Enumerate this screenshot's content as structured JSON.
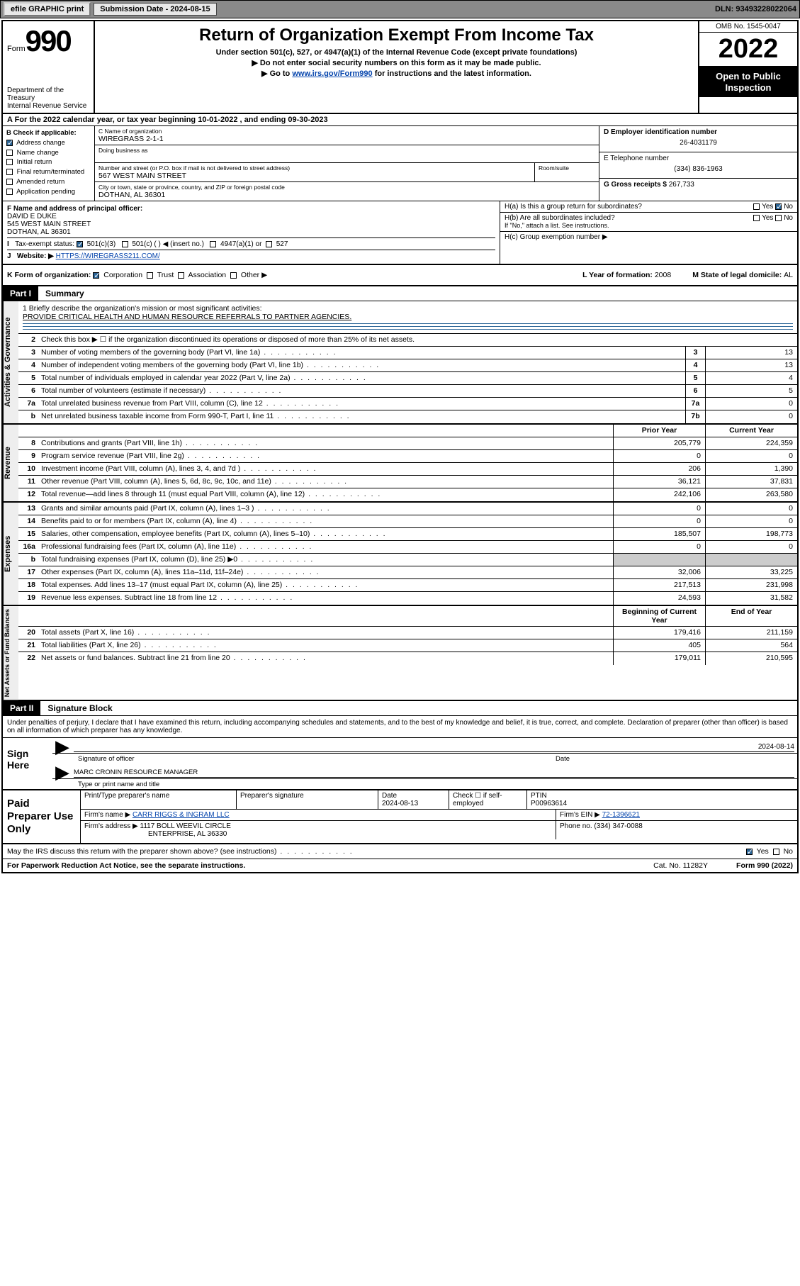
{
  "topbar": {
    "efile": "efile GRAPHIC print",
    "sub_label": "Submission Date - 2024-08-15",
    "dln": "DLN: 93493228022064"
  },
  "header": {
    "form_word": "Form",
    "form_num": "990",
    "dept": "Department of the Treasury\nInternal Revenue Service",
    "title": "Return of Organization Exempt From Income Tax",
    "sub1": "Under section 501(c), 527, or 4947(a)(1) of the Internal Revenue Code (except private foundations)",
    "sub2": "Do not enter social security numbers on this form as it may be made public.",
    "sub3_pre": "Go to ",
    "sub3_link": "www.irs.gov/Form990",
    "sub3_post": " for instructions and the latest information.",
    "omb": "OMB No. 1545-0047",
    "year": "2022",
    "public": "Open to Public Inspection"
  },
  "period": {
    "label_a": "A For the 2022 calendar year, or tax year beginning ",
    "begin": "10-01-2022",
    "mid": " , and ending ",
    "end": "09-30-2023"
  },
  "sectionB": {
    "label": "B Check if applicable:",
    "items": [
      {
        "txt": "Address change",
        "on": true
      },
      {
        "txt": "Name change",
        "on": false
      },
      {
        "txt": "Initial return",
        "on": false
      },
      {
        "txt": "Final return/terminated",
        "on": false
      },
      {
        "txt": "Amended return",
        "on": false
      },
      {
        "txt": "Application pending",
        "on": false
      }
    ]
  },
  "sectionC": {
    "name_lbl": "C Name of organization",
    "name": "WIREGRASS 2-1-1",
    "dba_lbl": "Doing business as",
    "addr_lbl": "Number and street (or P.O. box if mail is not delivered to street address)",
    "room_lbl": "Room/suite",
    "addr": "567 WEST MAIN STREET",
    "city_lbl": "City or town, state or province, country, and ZIP or foreign postal code",
    "city": "DOTHAN, AL  36301"
  },
  "sectionD": {
    "lbl": "D Employer identification number",
    "val": "26-4031179"
  },
  "sectionE": {
    "lbl": "E Telephone number",
    "val": "(334) 836-1963"
  },
  "sectionG": {
    "lbl": "G Gross receipts $ ",
    "val": "267,733"
  },
  "sectionF": {
    "lbl": "F Name and address of principal officer:",
    "name": "DAVID E DUKE",
    "addr1": "545 WEST MAIN STREET",
    "addr2": "DOTHAN, AL  36301"
  },
  "sectionH": {
    "ha": "H(a)  Is this a group return for subordinates?",
    "ha_yes": "Yes",
    "ha_no": "No",
    "hb": "H(b)  Are all subordinates included?",
    "hb_note": "If \"No,\" attach a list. See instructions.",
    "hc": "H(c)  Group exemption number ▶"
  },
  "taxExempt": {
    "lbl": "Tax-exempt status:",
    "opts": [
      "501(c)(3)",
      "501(c) (  ) ◀ (insert no.)",
      "4947(a)(1) or",
      "527"
    ]
  },
  "website": {
    "lbl": "Website: ▶",
    "val": "HTTPS://WIREGRASS211.COM/"
  },
  "sectionK": {
    "lbl": "K Form of organization:",
    "opts": [
      "Corporation",
      "Trust",
      "Association",
      "Other ▶"
    ]
  },
  "sectionL": {
    "lbl": "L Year of formation: ",
    "val": "2008"
  },
  "sectionM": {
    "lbl": "M State of legal domicile: ",
    "val": "AL"
  },
  "partI": {
    "hdr": "Part I",
    "title": "Summary"
  },
  "mission": {
    "lbl": "1   Briefly describe the organization's mission or most significant activities:",
    "txt": "PROVIDE CRITICAL HEALTH AND HUMAN RESOURCE REFERRALS TO PARTNER AGENCIES."
  },
  "line2": "Check this box ▶ ☐  if the organization discontinued its operations or disposed of more than 25% of its net assets.",
  "sections": {
    "gov": {
      "side": "Activities & Governance",
      "rows": [
        {
          "n": "3",
          "t": "Number of voting members of the governing body (Part VI, line 1a)",
          "b": "3",
          "v1": "",
          "v2": "13",
          "one": true
        },
        {
          "n": "4",
          "t": "Number of independent voting members of the governing body (Part VI, line 1b)",
          "b": "4",
          "v1": "",
          "v2": "13",
          "one": true
        },
        {
          "n": "5",
          "t": "Total number of individuals employed in calendar year 2022 (Part V, line 2a)",
          "b": "5",
          "v1": "",
          "v2": "4",
          "one": true
        },
        {
          "n": "6",
          "t": "Total number of volunteers (estimate if necessary)",
          "b": "6",
          "v1": "",
          "v2": "5",
          "one": true
        },
        {
          "n": "7a",
          "t": "Total unrelated business revenue from Part VIII, column (C), line 12",
          "b": "7a",
          "v1": "",
          "v2": "0",
          "one": true
        },
        {
          "n": "b",
          "t": "Net unrelated business taxable income from Form 990-T, Part I, line 11",
          "b": "7b",
          "v1": "",
          "v2": "0",
          "one": true
        }
      ]
    },
    "rev": {
      "side": "Revenue",
      "hdr": {
        "v1": "Prior Year",
        "v2": "Current Year"
      },
      "rows": [
        {
          "n": "8",
          "t": "Contributions and grants (Part VIII, line 1h)",
          "v1": "205,779",
          "v2": "224,359"
        },
        {
          "n": "9",
          "t": "Program service revenue (Part VIII, line 2g)",
          "v1": "0",
          "v2": "0"
        },
        {
          "n": "10",
          "t": "Investment income (Part VIII, column (A), lines 3, 4, and 7d )",
          "v1": "206",
          "v2": "1,390"
        },
        {
          "n": "11",
          "t": "Other revenue (Part VIII, column (A), lines 5, 6d, 8c, 9c, 10c, and 11e)",
          "v1": "36,121",
          "v2": "37,831"
        },
        {
          "n": "12",
          "t": "Total revenue—add lines 8 through 11 (must equal Part VIII, column (A), line 12)",
          "v1": "242,106",
          "v2": "263,580"
        }
      ]
    },
    "exp": {
      "side": "Expenses",
      "rows": [
        {
          "n": "13",
          "t": "Grants and similar amounts paid (Part IX, column (A), lines 1–3 )",
          "v1": "0",
          "v2": "0"
        },
        {
          "n": "14",
          "t": "Benefits paid to or for members (Part IX, column (A), line 4)",
          "v1": "0",
          "v2": "0"
        },
        {
          "n": "15",
          "t": "Salaries, other compensation, employee benefits (Part IX, column (A), lines 5–10)",
          "v1": "185,507",
          "v2": "198,773"
        },
        {
          "n": "16a",
          "t": "Professional fundraising fees (Part IX, column (A), line 11e)",
          "v1": "0",
          "v2": "0"
        },
        {
          "n": "b",
          "t": "Total fundraising expenses (Part IX, column (D), line 25) ▶0",
          "v1": "",
          "v2": "",
          "grey": true
        },
        {
          "n": "17",
          "t": "Other expenses (Part IX, column (A), lines 11a–11d, 11f–24e)",
          "v1": "32,006",
          "v2": "33,225"
        },
        {
          "n": "18",
          "t": "Total expenses. Add lines 13–17 (must equal Part IX, column (A), line 25)",
          "v1": "217,513",
          "v2": "231,998"
        },
        {
          "n": "19",
          "t": "Revenue less expenses. Subtract line 18 from line 12",
          "v1": "24,593",
          "v2": "31,582"
        }
      ]
    },
    "net": {
      "side": "Net Assets or Fund Balances",
      "hdr": {
        "v1": "Beginning of Current Year",
        "v2": "End of Year"
      },
      "rows": [
        {
          "n": "20",
          "t": "Total assets (Part X, line 16)",
          "v1": "179,416",
          "v2": "211,159"
        },
        {
          "n": "21",
          "t": "Total liabilities (Part X, line 26)",
          "v1": "405",
          "v2": "564"
        },
        {
          "n": "22",
          "t": "Net assets or fund balances. Subtract line 21 from line 20",
          "v1": "179,011",
          "v2": "210,595"
        }
      ]
    }
  },
  "partII": {
    "hdr": "Part II",
    "title": "Signature Block"
  },
  "penalty": "Under penalties of perjury, I declare that I have examined this return, including accompanying schedules and statements, and to the best of my knowledge and belief, it is true, correct, and complete. Declaration of preparer (other than officer) is based on all information of which preparer has any knowledge.",
  "sign": {
    "left": "Sign Here",
    "date": "2024-08-14",
    "sig_lbl": "Signature of officer",
    "date_lbl": "Date",
    "name": "MARC CRONIN  RESOURCE MANAGER",
    "name_lbl": "Type or print name and title"
  },
  "prep": {
    "left": "Paid Preparer Use Only",
    "row1": {
      "c1": "Print/Type preparer's name",
      "c2": "Preparer's signature",
      "c3": "Date\n2024-08-13",
      "c4": "Check ☐ if self-employed",
      "c5": "PTIN\nP00963614"
    },
    "row2": {
      "lbl": "Firm's name    ▶",
      "val": "CARR RIGGS & INGRAM LLC",
      "ein_lbl": "Firm's EIN ▶",
      "ein": "72-1396621"
    },
    "row3": {
      "lbl": "Firm's address ▶",
      "val1": "1117 BOLL WEEVIL CIRCLE",
      "val2": "ENTERPRISE, AL  36330",
      "ph_lbl": "Phone no.",
      "ph": "(334) 347-0088"
    }
  },
  "may": {
    "txt": "May the IRS discuss this return with the preparer shown above? (see instructions)",
    "yes": "Yes",
    "no": "No"
  },
  "footer": {
    "l": "For Paperwork Reduction Act Notice, see the separate instructions.",
    "m": "Cat. No. 11282Y",
    "r": "Form 990 (2022)"
  },
  "colors": {
    "link": "#0645ad",
    "check": "#2a6496",
    "grey": "#cccccc",
    "black": "#000000"
  }
}
